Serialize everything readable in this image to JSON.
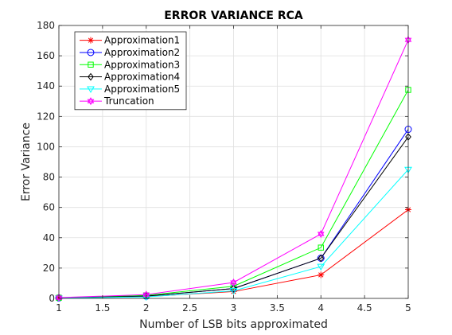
{
  "chart_data": {
    "type": "line",
    "title": "ERROR VARIANCE RCA",
    "xlabel": "Number of LSB bits approximated",
    "ylabel": "Error Variance",
    "x": [
      1,
      2,
      3,
      4,
      5
    ],
    "xlim": [
      1,
      5
    ],
    "ylim": [
      0,
      180
    ],
    "xticks": [
      1,
      1.5,
      2,
      2.5,
      3,
      3.5,
      4,
      4.5,
      5
    ],
    "xtick_labels": [
      "1",
      "1.5",
      "2",
      "2.5",
      "3",
      "3.5",
      "4",
      "4.5",
      "5"
    ],
    "yticks": [
      0,
      20,
      40,
      60,
      80,
      100,
      120,
      140,
      160,
      180
    ],
    "ytick_labels": [
      "0",
      "20",
      "40",
      "60",
      "80",
      "100",
      "120",
      "140",
      "160",
      "180"
    ],
    "grid": true,
    "legend_position": "top-left",
    "series": [
      {
        "name": "Approximation1",
        "color": "#ff0000",
        "marker": "asterisk",
        "values": [
          0.3,
          1.2,
          4.5,
          15.5,
          58.5
        ]
      },
      {
        "name": "Approximation2",
        "color": "#0000ff",
        "marker": "circle",
        "values": [
          0.3,
          1.5,
          6.5,
          26.5,
          111.5
        ]
      },
      {
        "name": "Approximation3",
        "color": "#00ff00",
        "marker": "square",
        "values": [
          0.4,
          2.0,
          8.0,
          33.5,
          137.5
        ]
      },
      {
        "name": "Approximation4",
        "color": "#000000",
        "marker": "diamond",
        "values": [
          0.3,
          1.5,
          6.5,
          26.5,
          106.5
        ]
      },
      {
        "name": "Approximation5",
        "color": "#00ffff",
        "marker": "triangle-down",
        "values": [
          0.2,
          1.0,
          5.0,
          21.0,
          85.0
        ]
      },
      {
        "name": "Truncation",
        "color": "#ff00ff",
        "marker": "hexagram",
        "values": [
          0.5,
          2.5,
          10.5,
          42.5,
          170.5
        ]
      }
    ]
  }
}
